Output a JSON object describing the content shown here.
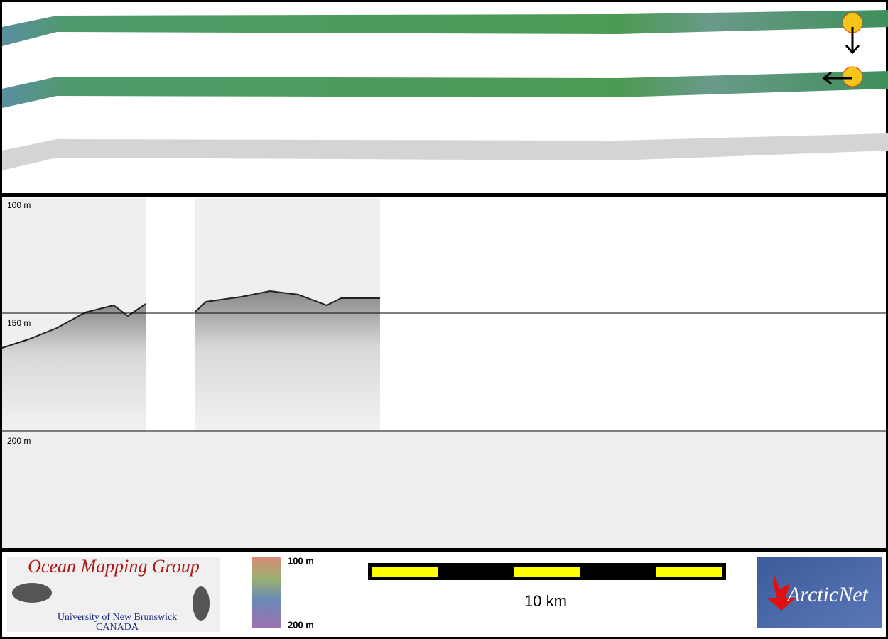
{
  "profile": {
    "depth_labels": [
      "100 m",
      "150 m",
      "200 m"
    ]
  },
  "logos": {
    "ocean_mapping": {
      "title": "Ocean Mapping Group",
      "line1": "University of New Brunswick",
      "line2": "CANADA"
    },
    "arcticnet": "ArcticNet"
  },
  "colorbar": {
    "top": "100 m",
    "bottom": "200 m"
  },
  "scale_bar": {
    "label": "10 km"
  }
}
